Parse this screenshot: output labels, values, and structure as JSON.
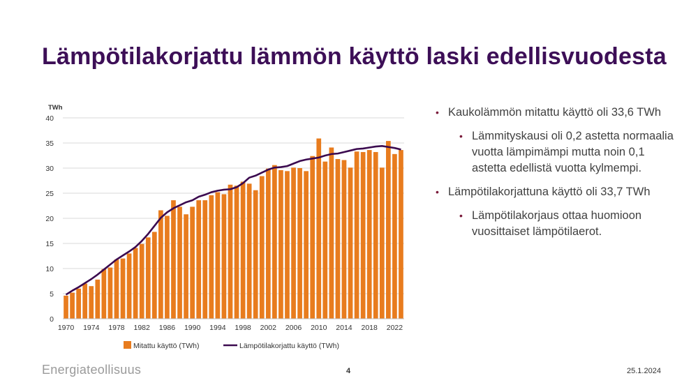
{
  "slide": {
    "title": "Lämpötilakorjattu lämmön käyttö laski edellisvuodesta",
    "bullets": [
      {
        "level": 1,
        "text": "Kaukolämmön mitattu käyttö oli 33,6 TWh"
      },
      {
        "level": 2,
        "text": "Lämmityskausi oli 0,2 astetta normaalia vuotta lämpimämpi mutta noin 0,1 astetta edellistä vuotta kylmempi."
      },
      {
        "level": 1,
        "text": "Lämpötilakorjattuna käyttö oli 33,7 TWh"
      },
      {
        "level": 2,
        "text": "Lämpötilakorjaus ottaa huomioon vuosittaiset lämpötilaerot."
      }
    ],
    "logo_text": "Energiateollisuus",
    "page_number": "4",
    "date": "25.1.2024"
  },
  "colors": {
    "title": "#3d0f57",
    "bar": "#e87c1e",
    "line": "#3b0a4f",
    "bullet_marker": "#7a1a3a",
    "grid": "#d9d9d9"
  },
  "chart_data": {
    "type": "bar",
    "ylabel": "TWh",
    "ylim": [
      0,
      40
    ],
    "yticks": [
      0,
      5,
      10,
      15,
      20,
      25,
      30,
      35,
      40
    ],
    "x": [
      1970,
      1971,
      1972,
      1973,
      1974,
      1975,
      1976,
      1977,
      1978,
      1979,
      1980,
      1981,
      1982,
      1983,
      1984,
      1985,
      1986,
      1987,
      1988,
      1989,
      1990,
      1991,
      1992,
      1993,
      1994,
      1995,
      1996,
      1997,
      1998,
      1999,
      2000,
      2001,
      2002,
      2003,
      2004,
      2005,
      2006,
      2007,
      2008,
      2009,
      2010,
      2011,
      2012,
      2013,
      2014,
      2015,
      2016,
      2017,
      2018,
      2019,
      2020,
      2021,
      2022,
      2023
    ],
    "xticks": [
      1970,
      1974,
      1978,
      1982,
      1986,
      1990,
      1994,
      1998,
      2002,
      2006,
      2010,
      2014,
      2018,
      2022
    ],
    "legend_position": "bottom",
    "grid": true,
    "series": [
      {
        "name": "Mitattu käyttö (TWh)",
        "type": "bar",
        "values": [
          4.6,
          5.2,
          6.0,
          7.0,
          6.5,
          7.8,
          9.9,
          10.2,
          11.8,
          12.0,
          13.0,
          14.1,
          14.9,
          16.2,
          17.3,
          21.6,
          20.5,
          23.6,
          22.3,
          20.8,
          22.3,
          23.6,
          23.6,
          24.6,
          25.2,
          24.8,
          26.7,
          26.5,
          27.3,
          26.9,
          25.6,
          28.4,
          29.9,
          30.6,
          29.6,
          29.4,
          30.1,
          30.0,
          29.4,
          32.4,
          35.9,
          31.3,
          34.1,
          31.8,
          31.6,
          30.1,
          33.3,
          33.2,
          33.6,
          33.2,
          30.1,
          35.4,
          32.8,
          33.6
        ]
      },
      {
        "name": "Lämpötilakorjattu käyttö (TWh)",
        "type": "line",
        "values": [
          4.8,
          5.6,
          6.3,
          7.1,
          7.9,
          8.8,
          9.8,
          10.8,
          11.8,
          12.6,
          13.4,
          14.3,
          15.5,
          16.9,
          18.5,
          20.1,
          21.2,
          22.0,
          22.6,
          23.2,
          23.6,
          24.3,
          24.7,
          25.2,
          25.5,
          25.7,
          25.8,
          26.2,
          27.0,
          28.1,
          28.5,
          29.1,
          29.7,
          30.1,
          30.2,
          30.4,
          30.9,
          31.4,
          31.7,
          31.9,
          32.1,
          32.5,
          32.8,
          32.9,
          33.2,
          33.5,
          33.8,
          33.9,
          34.1,
          34.3,
          34.4,
          34.2,
          34.0,
          33.7
        ]
      }
    ]
  }
}
